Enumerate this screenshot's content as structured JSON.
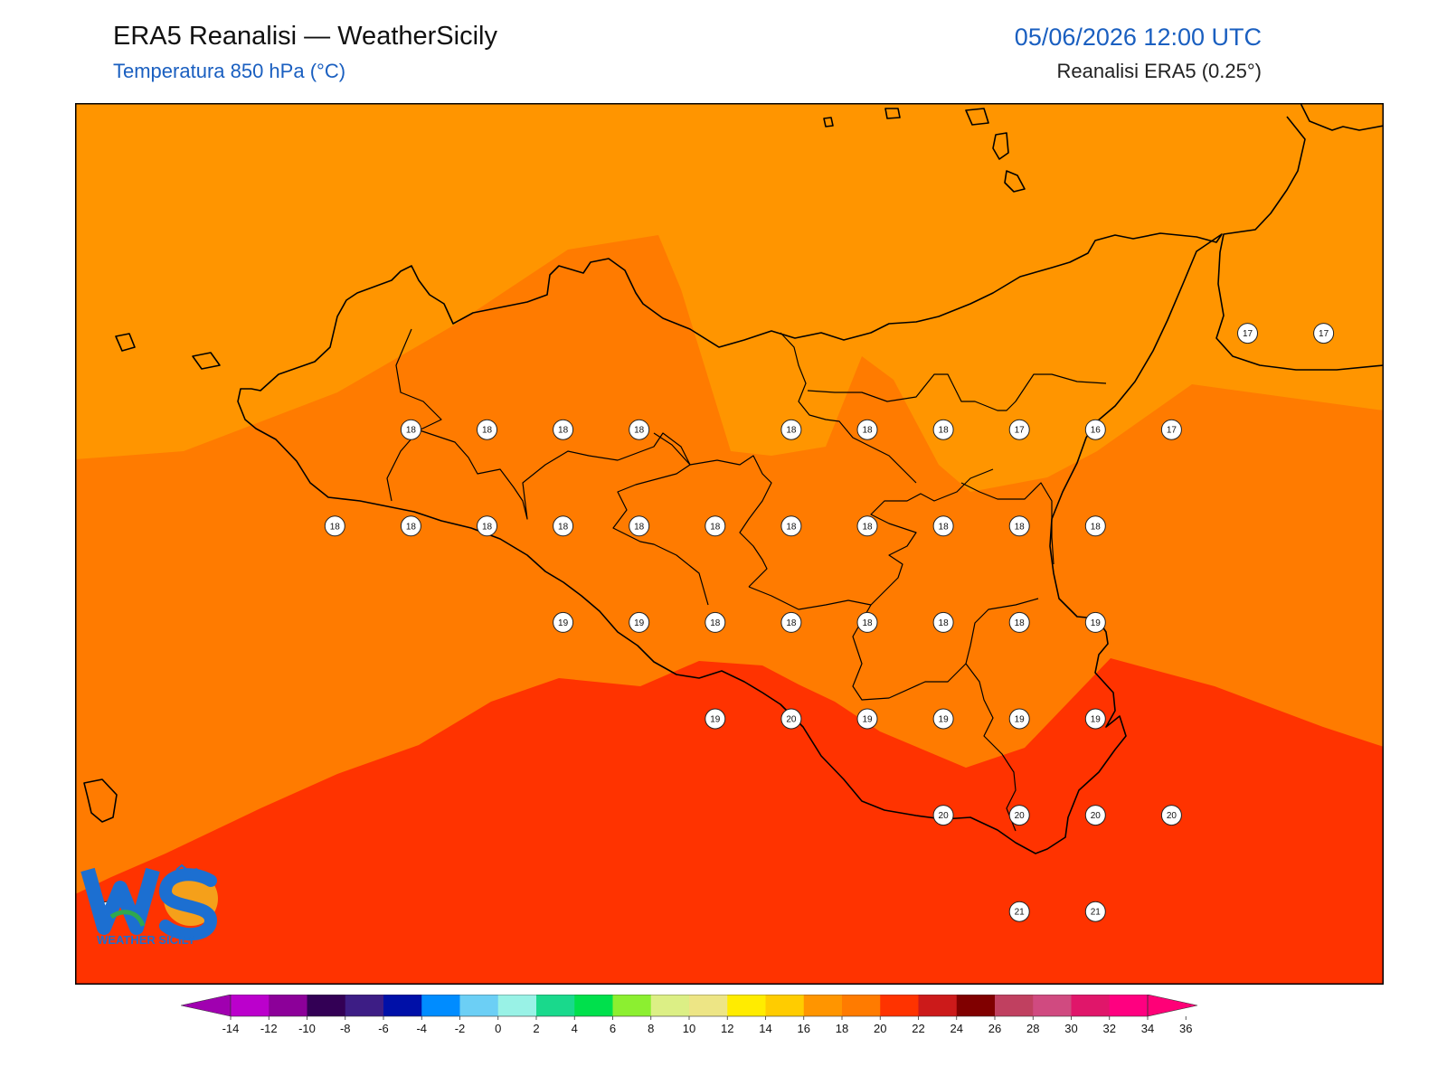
{
  "header": {
    "title": "ERA5 Reanalisi — WeatherSicily",
    "subtitle": "Temperatura 850 hPa (°C)",
    "datetime": "05/06/2026 12:00 UTC",
    "source": "Reanalisi ERA5 (0.25°)"
  },
  "logo": {
    "letters": "WS",
    "name": "WEATHER SICILY"
  },
  "colors": {
    "t16_18": "#ff9500",
    "t18_20": "#ff7b00",
    "t20_22": "#ff3300",
    "coast": "#000000"
  },
  "stations": [
    {
      "v": "17",
      "c": 15,
      "r": 1
    },
    {
      "v": "17",
      "c": 16,
      "r": 1
    },
    {
      "v": "18",
      "c": 4,
      "r": 2
    },
    {
      "v": "18",
      "c": 5,
      "r": 2
    },
    {
      "v": "18",
      "c": 6,
      "r": 2
    },
    {
      "v": "18",
      "c": 7,
      "r": 2
    },
    {
      "v": "18",
      "c": 9,
      "r": 2
    },
    {
      "v": "18",
      "c": 10,
      "r": 2
    },
    {
      "v": "18",
      "c": 11,
      "r": 2
    },
    {
      "v": "17",
      "c": 12,
      "r": 2
    },
    {
      "v": "16",
      "c": 13,
      "r": 2
    },
    {
      "v": "17",
      "c": 14,
      "r": 2
    },
    {
      "v": "18",
      "c": 3,
      "r": 3
    },
    {
      "v": "18",
      "c": 4,
      "r": 3
    },
    {
      "v": "18",
      "c": 5,
      "r": 3
    },
    {
      "v": "18",
      "c": 6,
      "r": 3
    },
    {
      "v": "18",
      "c": 7,
      "r": 3
    },
    {
      "v": "18",
      "c": 8,
      "r": 3
    },
    {
      "v": "18",
      "c": 9,
      "r": 3
    },
    {
      "v": "18",
      "c": 10,
      "r": 3
    },
    {
      "v": "18",
      "c": 11,
      "r": 3
    },
    {
      "v": "18",
      "c": 12,
      "r": 3
    },
    {
      "v": "18",
      "c": 13,
      "r": 3
    },
    {
      "v": "19",
      "c": 6,
      "r": 4
    },
    {
      "v": "19",
      "c": 7,
      "r": 4
    },
    {
      "v": "18",
      "c": 8,
      "r": 4
    },
    {
      "v": "18",
      "c": 9,
      "r": 4
    },
    {
      "v": "18",
      "c": 10,
      "r": 4
    },
    {
      "v": "18",
      "c": 11,
      "r": 4
    },
    {
      "v": "18",
      "c": 12,
      "r": 4
    },
    {
      "v": "19",
      "c": 13,
      "r": 4
    },
    {
      "v": "19",
      "c": 8,
      "r": 5
    },
    {
      "v": "20",
      "c": 9,
      "r": 5
    },
    {
      "v": "19",
      "c": 10,
      "r": 5
    },
    {
      "v": "19",
      "c": 11,
      "r": 5
    },
    {
      "v": "19",
      "c": 12,
      "r": 5
    },
    {
      "v": "19",
      "c": 13,
      "r": 5
    },
    {
      "v": "20",
      "c": 11,
      "r": 6
    },
    {
      "v": "20",
      "c": 12,
      "r": 6
    },
    {
      "v": "20",
      "c": 13,
      "r": 6
    },
    {
      "v": "20",
      "c": 14,
      "r": 6
    },
    {
      "v": "20",
      "c": 0,
      "r": 7
    },
    {
      "v": "21",
      "c": 12,
      "r": 7
    },
    {
      "v": "21",
      "c": 13,
      "r": 7
    }
  ],
  "colorbar": {
    "ticks": [
      "-14",
      "-12",
      "-10",
      "-8",
      "-6",
      "-4",
      "-2",
      "0",
      "2",
      "4",
      "6",
      "8",
      "10",
      "12",
      "14",
      "16",
      "18",
      "20",
      "22",
      "24",
      "26",
      "28",
      "30",
      "32",
      "34",
      "36"
    ],
    "colors": [
      "#bb00cc",
      "#8c0099",
      "#330055",
      "#3d1d85",
      "#0010a8",
      "#008cff",
      "#6ccff5",
      "#99f2e6",
      "#19d98c",
      "#00e04c",
      "#8cef30",
      "#dcef85",
      "#ede585",
      "#ffec00",
      "#ffcc00",
      "#ff9500",
      "#ff7b00",
      "#ff3300",
      "#cc1a1a",
      "#800000",
      "#c04060",
      "#d04a80",
      "#e0166a",
      "#ff0080"
    ],
    "under": "#a000b0",
    "over": "#ff0077"
  }
}
